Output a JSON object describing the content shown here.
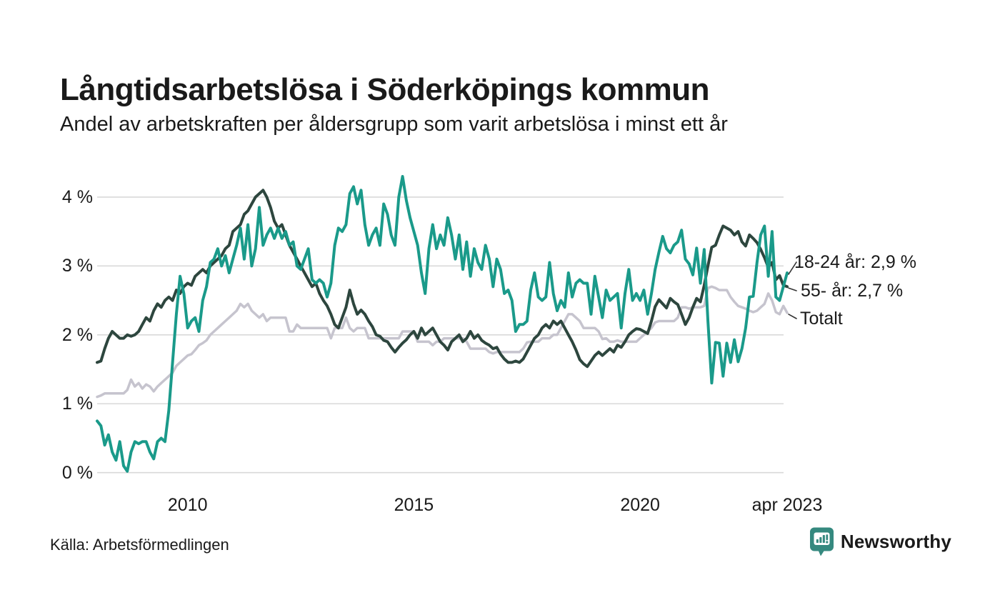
{
  "header": {
    "title": "Långtidsarbetslösa i Söderköpings kommun",
    "subtitle": "Andel av arbetskraften per åldersgrupp som varit arbetslösa i minst ett år"
  },
  "footer": {
    "source": "Källa: Arbetsförmedlingen",
    "brand": "Newsworthy"
  },
  "colors": {
    "series_18_24": "#1a9a8a",
    "series_55_plus": "#2d463e",
    "series_total": "#c6c4ce",
    "gridline": "#d9d9d9",
    "text": "#1a1a1a",
    "brand_teal": "#35897f",
    "connector": "#333333"
  },
  "chart_data": {
    "type": "line",
    "title": "Långtidsarbetslösa i Söderköpings kommun",
    "subtitle": "Andel av arbetskraften per åldersgrupp som varit arbetslösa i minst ett år",
    "x_unit": "month",
    "x_start": "2008-01",
    "x_end": "2023-04",
    "grid": true,
    "legend_position": "right-end-labels",
    "ylim": [
      0,
      4.45
    ],
    "yticks": [
      {
        "label": "0 %",
        "value": 0
      },
      {
        "label": "1 %",
        "value": 1
      },
      {
        "label": "2 %",
        "value": 2
      },
      {
        "label": "3 %",
        "value": 3
      },
      {
        "label": "4 %",
        "value": 4
      }
    ],
    "xticks": [
      {
        "label": "2010",
        "monthIndex": 24
      },
      {
        "label": "2015",
        "monthIndex": 84
      },
      {
        "label": "2020",
        "monthIndex": 144
      },
      {
        "label": "apr 2023",
        "monthIndex": 183
      }
    ],
    "series": [
      {
        "name": "Totalt",
        "end_label": "Totalt",
        "color": "#c6c4ce",
        "stroke_width": 3.5,
        "last_value": 2.32,
        "values": [
          1.1,
          1.12,
          1.15,
          1.15,
          1.15,
          1.15,
          1.15,
          1.15,
          1.2,
          1.35,
          1.25,
          1.3,
          1.22,
          1.28,
          1.25,
          1.18,
          1.25,
          1.3,
          1.35,
          1.4,
          1.45,
          1.55,
          1.6,
          1.65,
          1.7,
          1.72,
          1.78,
          1.85,
          1.88,
          1.92,
          2.0,
          2.05,
          2.1,
          2.15,
          2.2,
          2.25,
          2.3,
          2.35,
          2.45,
          2.4,
          2.45,
          2.35,
          2.3,
          2.25,
          2.3,
          2.2,
          2.25,
          2.25,
          2.25,
          2.25,
          2.25,
          2.05,
          2.05,
          2.15,
          2.1,
          2.1,
          2.1,
          2.1,
          2.1,
          2.1,
          2.1,
          2.1,
          1.95,
          2.1,
          2.1,
          2.1,
          2.25,
          2.1,
          2.05,
          2.1,
          2.1,
          2.1,
          1.95,
          1.95,
          1.95,
          1.95,
          1.95,
          1.95,
          1.95,
          1.95,
          1.95,
          2.05,
          2.05,
          2.05,
          2.05,
          1.9,
          1.9,
          1.9,
          1.9,
          1.85,
          1.9,
          1.9,
          1.95,
          1.95,
          1.95,
          1.95,
          1.95,
          1.95,
          1.9,
          1.8,
          1.8,
          1.8,
          1.8,
          1.8,
          1.75,
          1.73,
          1.75,
          1.75,
          1.75,
          1.75,
          1.75,
          1.75,
          1.75,
          1.8,
          1.89,
          1.9,
          1.9,
          1.9,
          1.95,
          1.95,
          1.95,
          2.0,
          2.0,
          2.1,
          2.2,
          2.3,
          2.3,
          2.25,
          2.2,
          2.1,
          2.1,
          2.1,
          2.1,
          2.05,
          1.94,
          1.95,
          1.9,
          1.9,
          1.92,
          1.9,
          1.9,
          1.9,
          1.9,
          1.9,
          1.95,
          2.0,
          2.05,
          2.1,
          2.18,
          2.2,
          2.2,
          2.2,
          2.2,
          2.2,
          2.25,
          2.4,
          2.4,
          2.38,
          2.4,
          2.4,
          2.4,
          2.42,
          2.68,
          2.7,
          2.68,
          2.65,
          2.65,
          2.65,
          2.55,
          2.48,
          2.42,
          2.4,
          2.38,
          2.35,
          2.33,
          2.35,
          2.4,
          2.45,
          2.6,
          2.5,
          2.33,
          2.3,
          2.42,
          2.32
        ]
      },
      {
        "name": "55- år",
        "end_label": "55- år: 2,7 %",
        "color": "#2d463e",
        "stroke_width": 4,
        "last_value": 2.7,
        "values": [
          1.6,
          1.62,
          1.8,
          1.95,
          2.05,
          2.0,
          1.95,
          1.95,
          2.0,
          1.98,
          2.0,
          2.05,
          2.15,
          2.25,
          2.2,
          2.35,
          2.45,
          2.4,
          2.5,
          2.55,
          2.5,
          2.65,
          2.6,
          2.7,
          2.75,
          2.72,
          2.85,
          2.9,
          2.95,
          2.9,
          3.0,
          3.05,
          3.1,
          3.15,
          3.25,
          3.3,
          3.5,
          3.55,
          3.6,
          3.75,
          3.8,
          3.9,
          4.0,
          4.05,
          4.1,
          4.0,
          3.85,
          3.65,
          3.55,
          3.6,
          3.45,
          3.3,
          3.2,
          3.1,
          3.0,
          2.9,
          2.8,
          2.7,
          2.75,
          2.6,
          2.5,
          2.42,
          2.3,
          2.15,
          2.1,
          2.25,
          2.4,
          2.65,
          2.45,
          2.3,
          2.36,
          2.3,
          2.2,
          2.12,
          2.0,
          1.98,
          1.92,
          1.9,
          1.82,
          1.75,
          1.82,
          1.88,
          1.93,
          2.0,
          2.05,
          1.95,
          2.1,
          2.0,
          2.05,
          2.1,
          2.0,
          1.9,
          1.85,
          1.78,
          1.9,
          1.95,
          2.0,
          1.9,
          1.95,
          2.05,
          1.95,
          2.0,
          1.92,
          1.88,
          1.85,
          1.8,
          1.82,
          1.72,
          1.65,
          1.6,
          1.6,
          1.62,
          1.6,
          1.65,
          1.75,
          1.85,
          1.95,
          2.0,
          2.1,
          2.15,
          2.1,
          2.2,
          2.15,
          2.2,
          2.1,
          2.0,
          1.9,
          1.78,
          1.64,
          1.58,
          1.54,
          1.62,
          1.7,
          1.75,
          1.7,
          1.75,
          1.8,
          1.75,
          1.85,
          1.82,
          1.9,
          2.0,
          2.05,
          2.09,
          2.08,
          2.05,
          2.02,
          2.2,
          2.41,
          2.51,
          2.45,
          2.39,
          2.53,
          2.48,
          2.44,
          2.3,
          2.15,
          2.25,
          2.4,
          2.53,
          2.48,
          2.72,
          3.0,
          3.27,
          3.3,
          3.45,
          3.58,
          3.55,
          3.52,
          3.45,
          3.5,
          3.35,
          3.29,
          3.45,
          3.4,
          3.34,
          3.24,
          3.12,
          2.98,
          3.05,
          2.8,
          2.86,
          2.72,
          2.7
        ]
      },
      {
        "name": "18-24 år",
        "end_label": "18-24 år: 2,9 %",
        "color": "#1a9a8a",
        "stroke_width": 4,
        "last_value": 2.9,
        "values": [
          0.75,
          0.68,
          0.4,
          0.55,
          0.3,
          0.18,
          0.45,
          0.1,
          0.02,
          0.3,
          0.45,
          0.42,
          0.45,
          0.45,
          0.3,
          0.2,
          0.45,
          0.5,
          0.45,
          0.9,
          1.6,
          2.3,
          2.85,
          2.6,
          2.1,
          2.2,
          2.25,
          2.05,
          2.5,
          2.7,
          3.05,
          3.1,
          3.25,
          3.0,
          3.15,
          2.9,
          3.1,
          3.3,
          3.55,
          3.1,
          3.6,
          3.0,
          3.25,
          3.85,
          3.3,
          3.45,
          3.55,
          3.4,
          3.55,
          3.4,
          3.5,
          3.3,
          3.35,
          3.0,
          2.95,
          3.1,
          3.25,
          2.8,
          2.75,
          2.8,
          2.75,
          2.55,
          2.75,
          3.3,
          3.55,
          3.5,
          3.6,
          4.05,
          4.15,
          3.9,
          4.1,
          3.6,
          3.3,
          3.45,
          3.55,
          3.3,
          3.9,
          3.75,
          3.45,
          3.3,
          4.0,
          4.3,
          3.95,
          3.7,
          3.5,
          3.3,
          2.9,
          2.6,
          3.25,
          3.6,
          3.25,
          3.45,
          3.3,
          3.7,
          3.45,
          3.1,
          3.45,
          2.95,
          3.35,
          2.85,
          3.25,
          3.05,
          2.95,
          3.3,
          3.1,
          2.7,
          3.1,
          2.95,
          2.6,
          2.65,
          2.5,
          2.05,
          2.15,
          2.15,
          2.2,
          2.65,
          2.9,
          2.55,
          2.5,
          2.55,
          3.05,
          2.6,
          2.35,
          2.5,
          2.4,
          2.9,
          2.55,
          2.75,
          2.8,
          2.75,
          2.75,
          2.3,
          2.85,
          2.55,
          2.25,
          2.65,
          2.5,
          2.55,
          2.6,
          2.1,
          2.6,
          2.95,
          2.5,
          2.6,
          2.5,
          2.65,
          2.3,
          2.6,
          2.95,
          3.2,
          3.43,
          3.25,
          3.19,
          3.3,
          3.35,
          3.52,
          3.1,
          3.03,
          2.87,
          3.26,
          2.75,
          3.24,
          2.2,
          1.3,
          1.89,
          1.88,
          1.4,
          1.88,
          1.6,
          1.93,
          1.61,
          1.8,
          2.1,
          2.55,
          2.56,
          3.05,
          3.45,
          3.58,
          2.85,
          3.5,
          2.55,
          2.5,
          2.7,
          2.9
        ]
      }
    ]
  }
}
